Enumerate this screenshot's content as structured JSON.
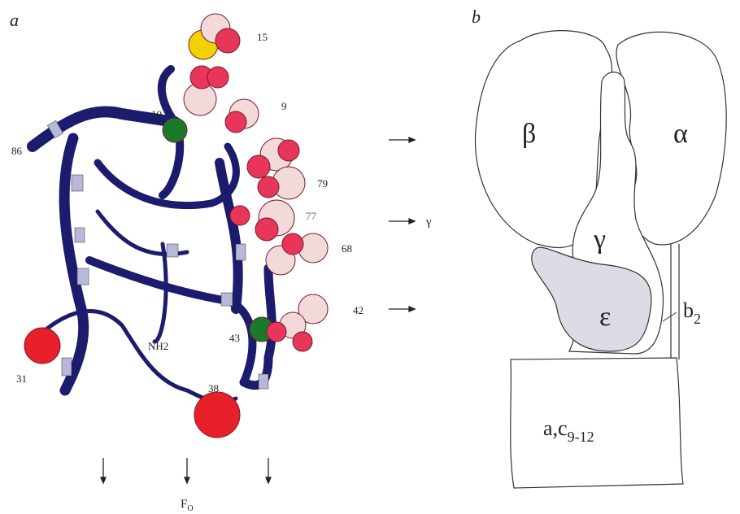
{
  "panel_a": {
    "label": "a",
    "residue_labels": [
      "15",
      "10",
      "9",
      "86",
      "79",
      "77",
      "68",
      "42",
      "43",
      "31",
      "38"
    ],
    "terminus": "NH2",
    "arrow_label": "γ",
    "bottom_label": {
      "main": "F",
      "sub": "O"
    }
  },
  "panel_b": {
    "label": "b",
    "subunits": {
      "beta": "β",
      "alpha": "α",
      "gamma": "γ",
      "epsilon": "ε"
    },
    "b2": {
      "main": "b",
      "sub": "2"
    },
    "ac": {
      "main": "a,c",
      "sub": "9-12"
    }
  }
}
